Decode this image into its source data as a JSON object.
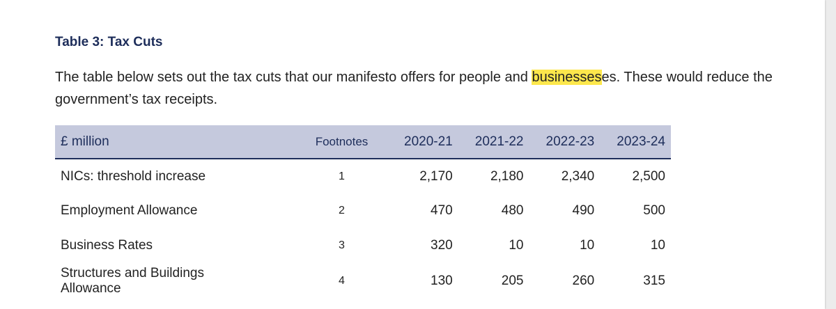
{
  "heading": "Table 3: Tax Cuts",
  "intro": {
    "before": "The table below sets out the tax cuts that our manifesto offers for people and ",
    "highlight": "businesses",
    "after": "es. These would reduce the government’s tax receipts.",
    "highlight_color": "#fde74c"
  },
  "table": {
    "headers": {
      "label": "£ million",
      "footnotes": "Footnotes",
      "years": [
        "2020-21",
        "2021-22",
        "2022-23",
        "2023-24"
      ]
    },
    "rows": [
      {
        "label": "NICs: threshold increase",
        "footnote": "1",
        "values": [
          "2,170",
          "2,180",
          "2,340",
          "2,500"
        ]
      },
      {
        "label": "Employment Allowance",
        "footnote": "2",
        "values": [
          "470",
          "480",
          "490",
          "500"
        ]
      },
      {
        "label": "Business Rates",
        "footnote": "3",
        "values": [
          "320",
          "10",
          "10",
          "10"
        ]
      },
      {
        "label_line1": "Structures and Buildings",
        "label_line2": "Allowance",
        "footnote": "4",
        "values": [
          "130",
          "205",
          "260",
          "315"
        ]
      }
    ],
    "header_bg": "#c5c9dd",
    "header_text_color": "#1d2d5a"
  }
}
